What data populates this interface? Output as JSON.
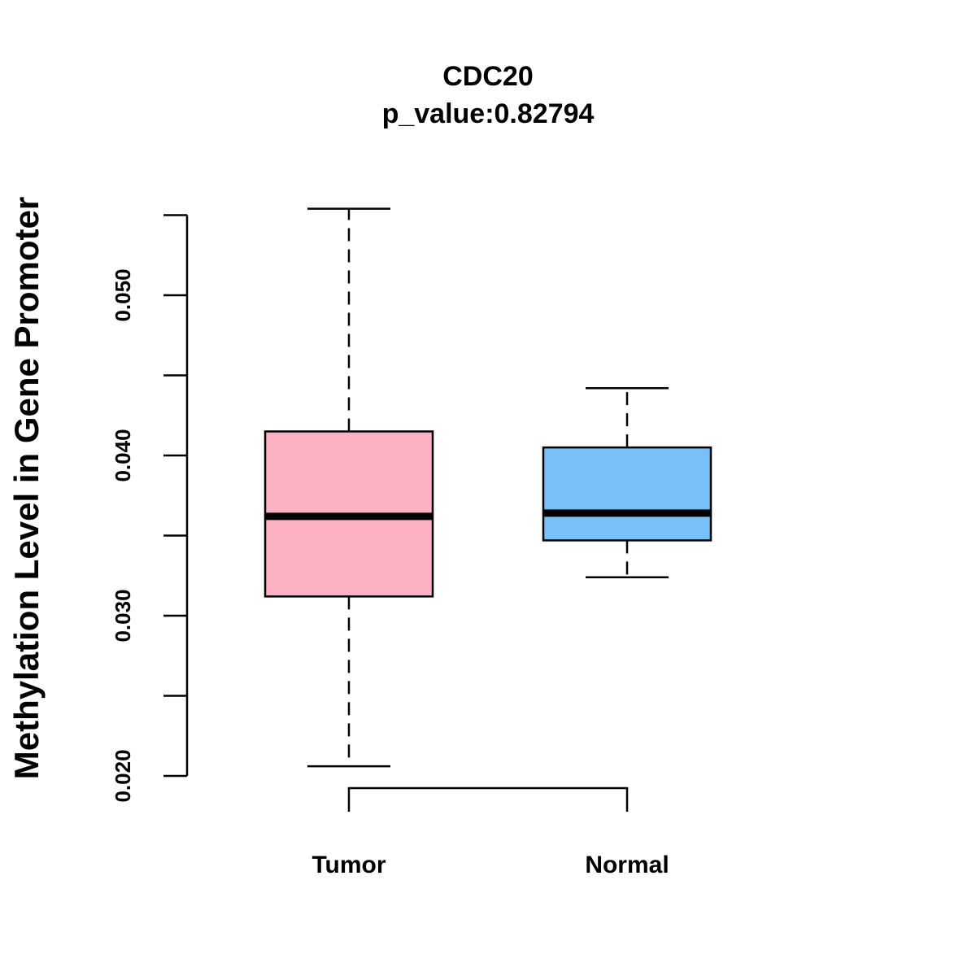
{
  "chart_data": {
    "type": "boxplot",
    "title": "CDC20",
    "subtitle": "p_value:0.82794",
    "xlabel": "",
    "ylabel": "Methylation Level in Gene Promoter",
    "ylim": [
      0.02,
      0.055
    ],
    "yticks": [
      0.02,
      0.025,
      0.03,
      0.035,
      0.04,
      0.045,
      0.05,
      0.055
    ],
    "ytick_labels": [
      "0.020",
      "",
      "0.030",
      "",
      "0.040",
      "",
      "0.050",
      ""
    ],
    "categories": [
      "Tumor",
      "Normal"
    ],
    "series": [
      {
        "name": "Tumor",
        "color": "#FDB1C3",
        "whisker_low": 0.0206,
        "q1": 0.0312,
        "median": 0.0362,
        "q3": 0.0415,
        "whisker_high": 0.0554
      },
      {
        "name": "Normal",
        "color": "#78C1F8",
        "whisker_low": 0.0324,
        "q1": 0.0347,
        "median": 0.0364,
        "q3": 0.0405,
        "whisker_high": 0.0442
      }
    ],
    "comparison_bracket": [
      "Tumor",
      "Normal"
    ],
    "grid": false,
    "legend": "none"
  }
}
